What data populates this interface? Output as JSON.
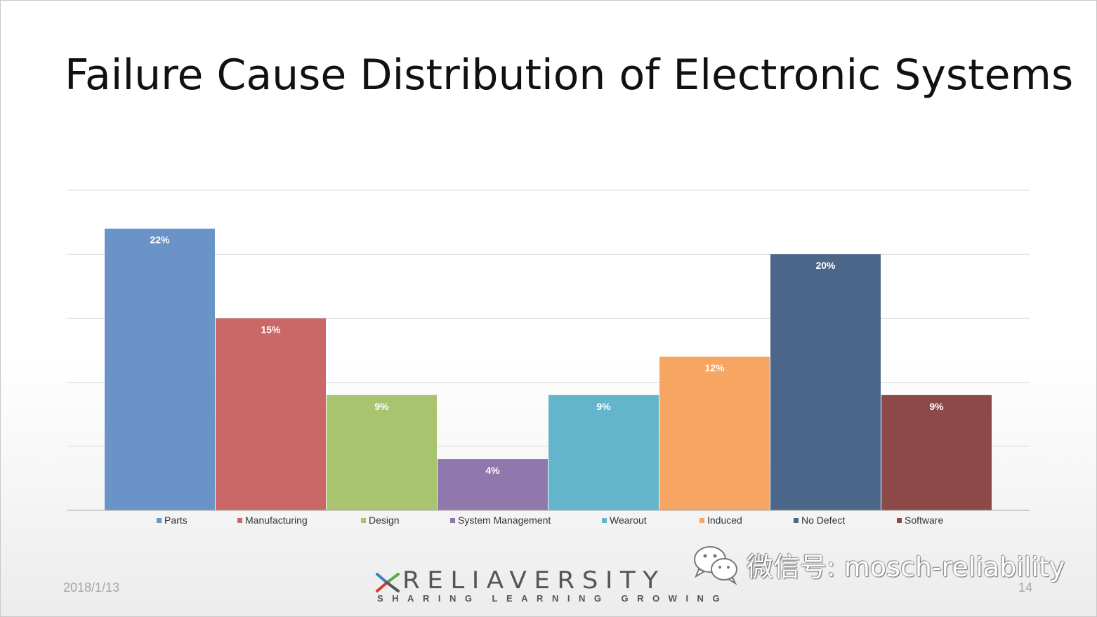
{
  "slide": {
    "title": "Failure Cause Distribution of Electronic Systems",
    "date": "2018/1/13",
    "page_number": "14"
  },
  "logo": {
    "wordmark": "RELIAVERSITY",
    "tagline": "SHARING LEARNING GROWING"
  },
  "watermark": {
    "text": "微信号: mosch-reliability",
    "icon": "wechat-icon"
  },
  "chart_data": {
    "type": "bar",
    "categories": [
      "Parts",
      "Manufacturing",
      "Design",
      "System Management",
      "Wearout",
      "Induced",
      "No Defect",
      "Software"
    ],
    "values": [
      22,
      15,
      9,
      4,
      9,
      12,
      20,
      9
    ],
    "data_labels": [
      "22%",
      "15%",
      "9%",
      "4%",
      "9%",
      "12%",
      "20%",
      "9%"
    ],
    "colors": [
      "#6a94c8",
      "#c96866",
      "#a9c46f",
      "#9078ac",
      "#63b5cb",
      "#f6a662",
      "#4b6688",
      "#8b4a48"
    ],
    "ylim": [
      0,
      25
    ],
    "grid": true,
    "legend": "bottom"
  }
}
